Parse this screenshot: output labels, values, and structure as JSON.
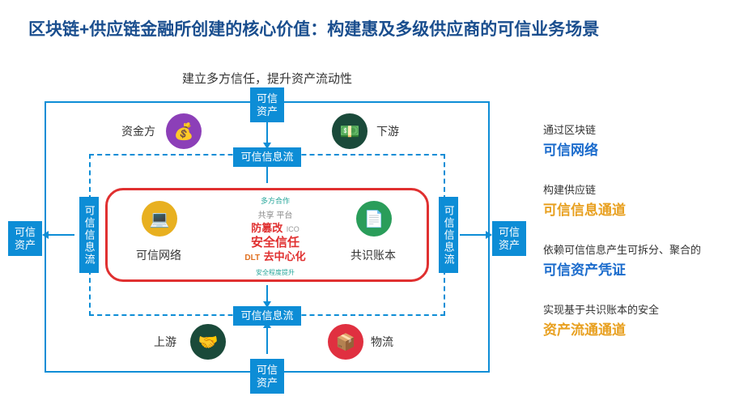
{
  "title_color": "#1a4e8e",
  "title": "区块链+供应链金融所创建的核心价值：构建惠及多级供应商的可信业务场景",
  "subtitle": "建立多方信任，提升资产流动性",
  "right": [
    {
      "small": "通过区块链",
      "big": "可信网络",
      "color": "#1a6bcc"
    },
    {
      "small": "构建供应链",
      "big": "可信信息通道",
      "color": "#e8a020"
    },
    {
      "small": "依赖可信信息产生可拆分、聚合的",
      "big": "可信资产凭证",
      "color": "#1a6bcc"
    },
    {
      "small": "实现基于共识账本的安全",
      "big": "资产流通通道",
      "color": "#e8a020"
    }
  ],
  "nodes": {
    "asset": "可信\n资产",
    "info_flow": "可信信息流",
    "info_flow_v": "可信信息流"
  },
  "actors": {
    "fund": {
      "label": "资金方",
      "color": "#8c3fb8",
      "glyph": "💰"
    },
    "downstream": {
      "label": "下游",
      "color": "#1a4a3a",
      "glyph": "💵"
    },
    "upstream": {
      "label": "上游",
      "color": "#1a4a3a",
      "glyph": "🤝"
    },
    "logistics": {
      "label": "物流",
      "color": "#e03040",
      "glyph": "📦"
    }
  },
  "core": {
    "network": {
      "label": "可信网络",
      "color": "#e8b020",
      "glyph": "💻"
    },
    "ledger": {
      "label": "共识账本",
      "color": "#2a9d5a",
      "glyph": "📄"
    }
  },
  "wordcloud": {
    "l1": "多方合作",
    "l2": "共享 平台",
    "l3": "防篡改",
    "l4": "ICO",
    "l5": "安全信任",
    "l6": "DLT",
    "l7": "去中心化",
    "l8": "安全程度提升"
  },
  "colors": {
    "blue": "#0d8dd6",
    "red": "#e03030"
  }
}
